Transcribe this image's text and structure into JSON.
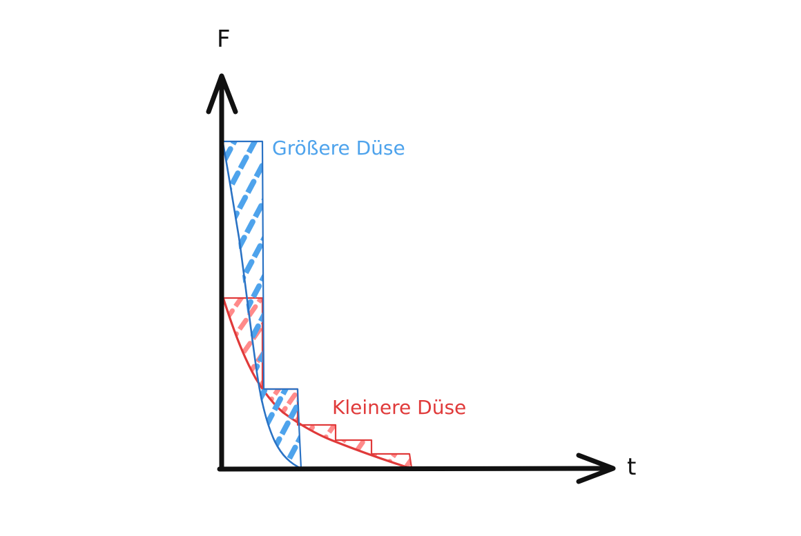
{
  "axes": {
    "y_label": "F",
    "x_label": "t"
  },
  "labels": {
    "large_nozzle": "Größere Düse",
    "small_nozzle": "Kleinere Düse"
  },
  "colors": {
    "axis": "#111111",
    "large_nozzle_stroke": "#2a72c4",
    "large_nozzle_hatch": "#4ea3ec",
    "small_nozzle_stroke": "#e03a3a",
    "small_nozzle_hatch": "#ff8a8a"
  }
}
